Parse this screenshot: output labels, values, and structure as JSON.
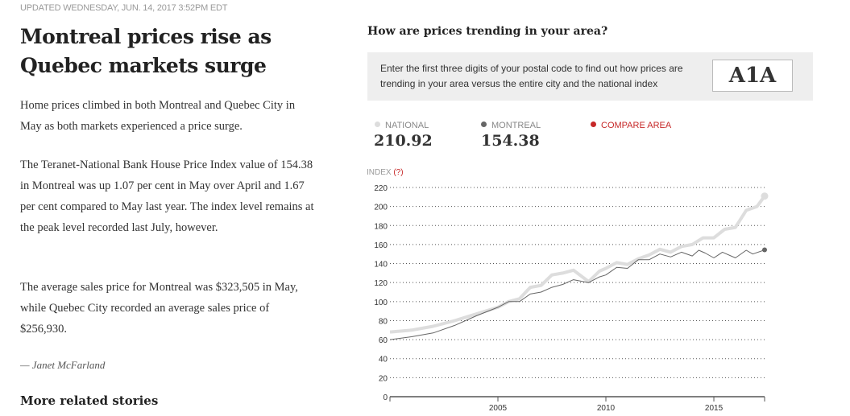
{
  "article": {
    "updated": "UPDATED WEDNESDAY, JUN. 14, 2017 3:52PM EDT",
    "headline": "Montreal prices rise as Quebec markets surge",
    "paragraphs": [
      "Home prices climbed in both Montreal and Quebec City in May as both markets experienced a price surge.",
      "The Teranet-National Bank House Price Index value of 154.38 in Montreal was up 1.07 per cent in May over April and 1.67 per cent compared to May last year. The index level remains at the peak level recorded last July, however.",
      "The average sales price for Montreal was $323,505 in May, while Quebec City recorded an average sales price of $256,930."
    ],
    "byline": "— Janet McFarland",
    "more_stories": "More related stories"
  },
  "widget": {
    "title": "How are prices trending in your area?",
    "instructions": "Enter the first three digits of your postal code to find out how prices are trending in your area versus the entire city and the national index",
    "postal_code_value": "A1A",
    "legend": [
      {
        "label": "NATIONAL",
        "value": "210.92",
        "color": "#dddddd"
      },
      {
        "label": "MONTREAL",
        "value": "154.38",
        "color": "#666666"
      },
      {
        "label": "COMPARE AREA",
        "value": "",
        "color": "#c62828"
      }
    ],
    "index_label": "INDEX",
    "help_label": "(?)"
  },
  "chart_data": {
    "type": "line",
    "ylabel": "INDEX",
    "ylim": [
      0,
      220
    ],
    "xlim": [
      2000,
      2017.35
    ],
    "yticks": [
      0,
      20,
      40,
      60,
      80,
      100,
      120,
      140,
      160,
      180,
      200,
      220
    ],
    "xticks": [
      2005,
      2010,
      2015
    ],
    "grid": "horizontal dotted",
    "series": [
      {
        "name": "NATIONAL",
        "color": "#dddddd",
        "x": [
          2000,
          2001,
          2002,
          2003,
          2004,
          2005,
          2005.5,
          2006,
          2006.5,
          2007,
          2007.5,
          2008,
          2008.5,
          2009.2,
          2009.7,
          2010,
          2010.5,
          2011,
          2011.5,
          2012,
          2012.5,
          2013,
          2013.5,
          2014,
          2014.5,
          2015,
          2015.5,
          2016,
          2016.5,
          2017,
          2017.35
        ],
        "y": [
          68,
          70,
          74,
          80,
          87,
          94,
          100,
          103,
          115,
          117,
          128,
          130,
          133,
          121,
          132,
          135,
          141,
          139,
          145,
          149,
          155,
          152,
          158,
          160,
          167,
          167,
          176,
          178,
          196,
          200,
          210.92
        ]
      },
      {
        "name": "MONTREAL",
        "color": "#666666",
        "x": [
          2000,
          2001,
          2002,
          2003,
          2004,
          2005,
          2005.5,
          2006,
          2006.5,
          2007,
          2007.5,
          2008,
          2008.5,
          2009.2,
          2009.7,
          2010,
          2010.5,
          2011,
          2011.5,
          2012,
          2012.5,
          2013,
          2013.5,
          2014,
          2014.3,
          2014.6,
          2015,
          2015.4,
          2016,
          2016.5,
          2016.8,
          2017.35
        ],
        "y": [
          60,
          63,
          67,
          75,
          85,
          94,
          100,
          100,
          108,
          110,
          115,
          118,
          123,
          120,
          126,
          128,
          136,
          135,
          144,
          144,
          150,
          147,
          152,
          148,
          154,
          151,
          146,
          152,
          146,
          154,
          150,
          154.38
        ]
      }
    ]
  }
}
